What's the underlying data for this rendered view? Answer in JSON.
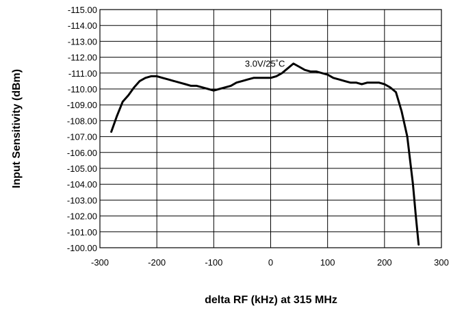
{
  "chart_data": {
    "type": "line",
    "title": "",
    "xlabel": "delta RF (kHz) at 315 MHz",
    "ylabel": "Input Sensitivity (dBm)",
    "xlim": [
      -300,
      300
    ],
    "ylim": [
      -100,
      -115
    ],
    "x_ticks": [
      -300,
      -200,
      -100,
      0,
      100,
      200,
      300
    ],
    "x_tick_labels": [
      "-300",
      "-200",
      "-100",
      "0",
      "100",
      "200",
      "300"
    ],
    "y_ticks": [
      -115,
      -114,
      -113,
      -112,
      -111,
      -110,
      -109,
      -108,
      -107,
      -106,
      -105,
      -104,
      -103,
      -102,
      -101,
      -100
    ],
    "y_tick_labels": [
      "-115.00",
      "-114.00",
      "-113.00",
      "-112.00",
      "-111.00",
      "-110.00",
      "-109.00",
      "-108.00",
      "-107.00",
      "-106.00",
      "-105.00",
      "-104.00",
      "-103.00",
      "-102.00",
      "-101.00",
      "-100.00"
    ],
    "grid": true,
    "y_axis_inverted": true,
    "annotation": {
      "text": "3.0V/25˚C",
      "x": -10,
      "y": -111.4
    },
    "series": [
      {
        "x": [
          -280,
          -270,
          -260,
          -250,
          -240,
          -230,
          -220,
          -210,
          -200,
          -190,
          -180,
          -170,
          -160,
          -150,
          -140,
          -130,
          -120,
          -110,
          -100,
          -90,
          -80,
          -70,
          -60,
          -50,
          -40,
          -30,
          -20,
          -10,
          0,
          10,
          20,
          30,
          40,
          50,
          60,
          70,
          80,
          90,
          100,
          110,
          120,
          130,
          140,
          150,
          160,
          170,
          180,
          190,
          200,
          210,
          220,
          230,
          240,
          250,
          255,
          260
        ],
        "y": [
          -107.3,
          -108.3,
          -109.2,
          -109.6,
          -110.1,
          -110.5,
          -110.7,
          -110.8,
          -110.8,
          -110.7,
          -110.6,
          -110.5,
          -110.4,
          -110.3,
          -110.2,
          -110.2,
          -110.1,
          -110.0,
          -109.9,
          -110.0,
          -110.1,
          -110.2,
          -110.4,
          -110.5,
          -110.6,
          -110.7,
          -110.7,
          -110.7,
          -110.7,
          -110.8,
          -111.0,
          -111.3,
          -111.6,
          -111.4,
          -111.2,
          -111.1,
          -111.1,
          -111.0,
          -110.9,
          -110.7,
          -110.6,
          -110.5,
          -110.4,
          -110.4,
          -110.3,
          -110.4,
          -110.4,
          -110.4,
          -110.3,
          -110.1,
          -109.8,
          -108.6,
          -107.0,
          -104.0,
          -102.0,
          -100.2
        ]
      }
    ]
  }
}
